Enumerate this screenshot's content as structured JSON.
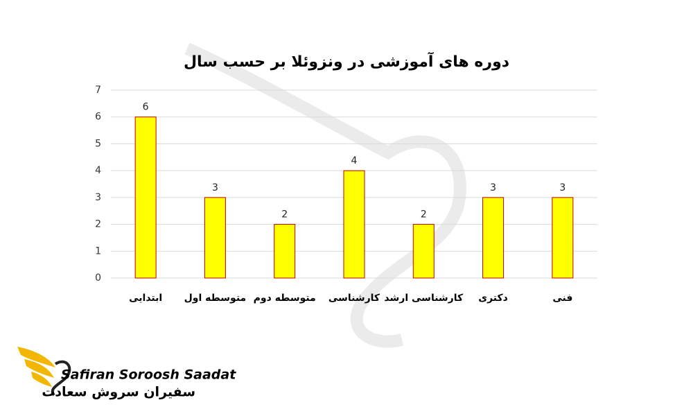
{
  "chart_data": {
    "type": "bar",
    "title": "دوره های آموزشی در ونزوئلا بر حسب سال",
    "categories": [
      "ابتدایی",
      "متوسطه اول",
      "متوسطه دوم",
      "کارشناسی",
      "کارشناسی ارشد",
      "دکتری",
      "فنی"
    ],
    "values": [
      6,
      3,
      2,
      4,
      2,
      3,
      3
    ],
    "color": "#ffff00",
    "edgecolor": "#c00000",
    "ylim": [
      0,
      7
    ],
    "yticks": [
      0,
      1,
      2,
      3,
      4,
      5,
      6,
      7
    ],
    "grid": true
  },
  "logo": {
    "name_en": "Safiran Soroosh Saadat",
    "name_fa": "سفیران سروش سعادت"
  }
}
